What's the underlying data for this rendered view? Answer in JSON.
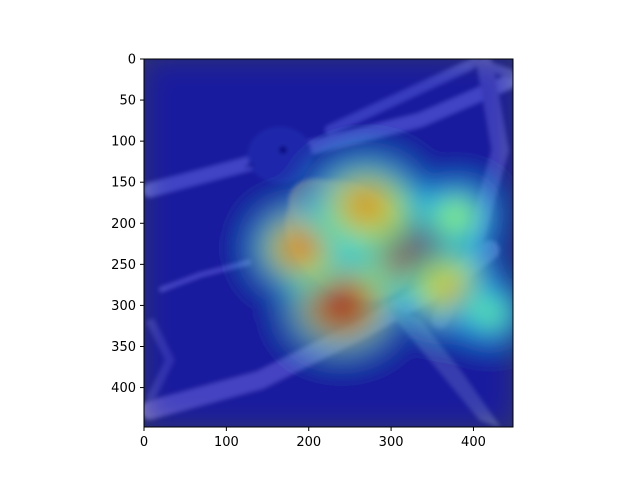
{
  "chart_data": {
    "type": "heatmap",
    "title": "",
    "xlabel": "",
    "ylabel": "",
    "image_extent": [
      0,
      448,
      448,
      0
    ],
    "xlim": [
      0,
      448
    ],
    "ylim": [
      448,
      0
    ],
    "x_ticks": [
      0,
      100,
      200,
      300,
      400
    ],
    "x_tick_labels": [
      "0",
      "100",
      "200",
      "300",
      "400"
    ],
    "y_ticks": [
      0,
      50,
      100,
      150,
      200,
      250,
      300,
      350,
      400
    ],
    "y_tick_labels": [
      "0",
      "50",
      "100",
      "150",
      "200",
      "250",
      "300",
      "350",
      "400"
    ],
    "grid": false,
    "colormap": "jet",
    "overlay_opacity": 0.5,
    "background_scene": "bird perched on branch",
    "activation_hotspots": [
      {
        "x": 330,
        "y": 230,
        "intensity": 1.0,
        "spread": 70
      },
      {
        "x": 240,
        "y": 300,
        "intensity": 0.95,
        "spread": 60
      },
      {
        "x": 190,
        "y": 230,
        "intensity": 0.75,
        "spread": 55
      },
      {
        "x": 270,
        "y": 180,
        "intensity": 0.7,
        "spread": 65
      },
      {
        "x": 370,
        "y": 280,
        "intensity": 0.65,
        "spread": 55
      },
      {
        "x": 380,
        "y": 190,
        "intensity": 0.5,
        "spread": 45
      },
      {
        "x": 420,
        "y": 310,
        "intensity": 0.45,
        "spread": 40
      }
    ],
    "colors": {
      "background_dark": "#1e2650",
      "bird_body": "#b8734a",
      "bird_head": "#3a4a7c",
      "branch": "#6c6a8e"
    }
  }
}
